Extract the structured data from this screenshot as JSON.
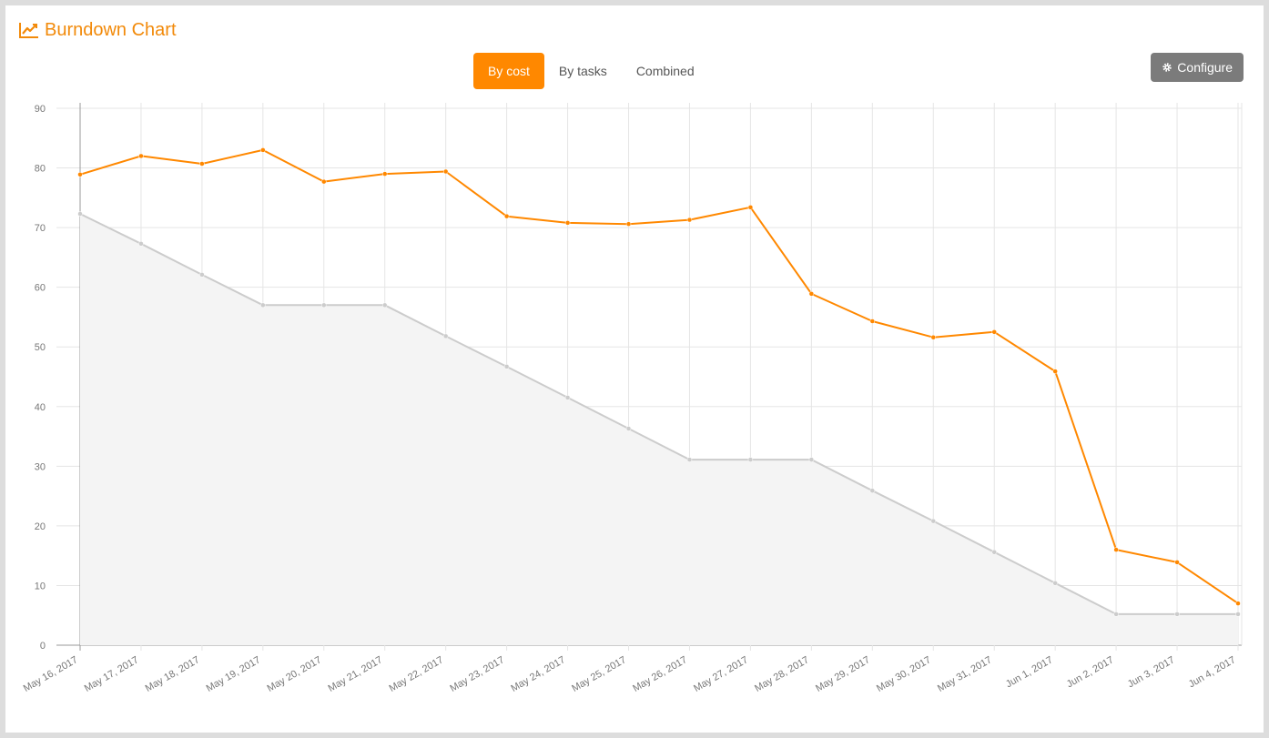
{
  "header": {
    "title": "Burndown Chart",
    "icon": "line-chart-icon",
    "color": "#f28a0a"
  },
  "tabs": [
    {
      "label": "By cost",
      "active": true
    },
    {
      "label": "By tasks",
      "active": false
    },
    {
      "label": "Combined",
      "active": false
    }
  ],
  "toolbar": {
    "configure_label": "Configure",
    "configure_icon": "gear-icon"
  },
  "chart_data": {
    "type": "line",
    "title": "",
    "xlabel": "",
    "ylabel": "",
    "ylim": [
      0,
      90
    ],
    "yticks": [
      0,
      10,
      20,
      30,
      40,
      50,
      60,
      70,
      80,
      90
    ],
    "grid": true,
    "categories": [
      "May 16, 2017",
      "May 17, 2017",
      "May 18, 2017",
      "May 19, 2017",
      "May 20, 2017",
      "May 21, 2017",
      "May 22, 2017",
      "May 23, 2017",
      "May 24, 2017",
      "May 25, 2017",
      "May 26, 2017",
      "May 27, 2017",
      "May 28, 2017",
      "May 29, 2017",
      "May 30, 2017",
      "May 31, 2017",
      "Jun 1, 2017",
      "Jun 2, 2017",
      "Jun 3, 2017",
      "Jun 4, 2017"
    ],
    "series": [
      {
        "values": [
          78.9,
          82,
          80.7,
          83,
          77.7,
          79,
          79.4,
          71.9,
          70.8,
          70.6,
          71.3,
          73.4,
          58.9,
          54.3,
          51.6,
          52.5,
          45.9,
          16,
          13.9,
          7
        ],
        "color": "#ff8800",
        "fill": false
      },
      {
        "values": [
          72.3,
          67.3,
          62.1,
          57,
          57,
          57,
          51.8,
          46.7,
          41.5,
          36.3,
          31.1,
          31.1,
          31.1,
          25.9,
          20.8,
          15.6,
          10.4,
          5.2,
          5.2,
          5.2
        ],
        "color": "#cccccc",
        "fill": true,
        "fill_color": "#f4f4f4"
      }
    ]
  }
}
